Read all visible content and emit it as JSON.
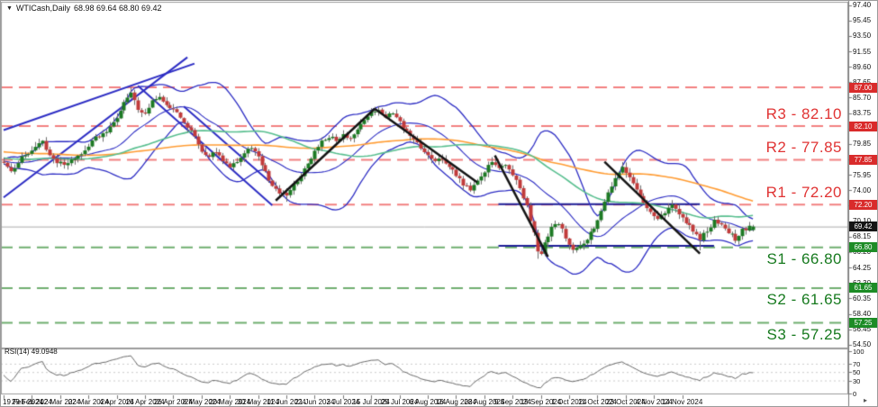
{
  "window": {
    "symbol_title": "WTICash,Daily",
    "ohlc_title": "68.98 69.64 68.80 69.42",
    "dropdown_glyph": "▼",
    "scroll_end_glyph": "▸"
  },
  "chart_data": {
    "type": "candlestick",
    "symbol": "WTICash",
    "timeframe": "Daily",
    "last_ohlc": {
      "open": 68.98,
      "high": 69.64,
      "low": 68.8,
      "close": 69.42
    },
    "y_axis": {
      "top_tick_value": 97.4,
      "tick_step": 1.95,
      "ticks": [
        "97.40",
        "95.45",
        "93.50",
        "91.55",
        "89.60",
        "87.65",
        "85.70",
        "83.75",
        "81.80",
        "79.85",
        "77.90",
        "75.95",
        "74.00",
        "72.05",
        "70.10",
        "68.15",
        "66.20",
        "64.25",
        "62.30",
        "60.35",
        "58.40",
        "56.45",
        "54.50"
      ]
    },
    "x_axis": {
      "labels": [
        "19 Feb 2024",
        "29 Feb 2024",
        "12 Mar 2024",
        "22 Mar 2024",
        "4 Apr 2024",
        "16 Apr 2024",
        "26 Apr 2024",
        "8 May 2024",
        "20 May 2024",
        "30 May 2024",
        "11 Jun 2024",
        "21 Jun 2024",
        "3 Jul 2024",
        "15 Jul 2024",
        "25 Jul 2024",
        "6 Aug 2024",
        "16 Aug 2024",
        "28 Aug 2024",
        "9 Sep 2024",
        "19 Sep 2024",
        "1 Oct 2024",
        "11 Oct 2024",
        "23 Oct 2024",
        "4 Nov 2024",
        "14 Nov 2024"
      ],
      "bars_per_label": 8
    },
    "levels": {
      "resistance": [
        {
          "label": "R3 - 82.10",
          "value": 82.1
        },
        {
          "label": "R2 - 77.85",
          "value": 77.85
        },
        {
          "label": "R1 - 72.20",
          "value": 72.2
        }
      ],
      "support": [
        {
          "label": "S1 - 66.80",
          "value": 66.8
        },
        {
          "label": "S2 - 61.65",
          "value": 61.65
        },
        {
          "label": "S3 - 57.25",
          "value": 57.25
        }
      ],
      "upper_resistance_line": 87.0,
      "current_price": 69.42
    },
    "badges": [
      {
        "text": "87.00",
        "value": 87.0,
        "kind": "r"
      },
      {
        "text": "82.10",
        "value": 82.1,
        "kind": "r"
      },
      {
        "text": "77.85",
        "value": 77.85,
        "kind": "r"
      },
      {
        "text": "72.20",
        "value": 72.2,
        "kind": "r"
      },
      {
        "text": "69.42",
        "value": 69.42,
        "kind": "cur"
      },
      {
        "text": "66.80",
        "value": 66.8,
        "kind": "s"
      },
      {
        "text": "61.65",
        "value": 61.65,
        "kind": "s"
      },
      {
        "text": "57.25",
        "value": 57.25,
        "kind": "s"
      }
    ],
    "close_path": [
      [
        -100,
        80.5
      ],
      [
        -50,
        78.8
      ],
      [
        0,
        77.4
      ],
      [
        2,
        76.3
      ],
      [
        5,
        78.3
      ],
      [
        8,
        79.0
      ],
      [
        11,
        80.1
      ],
      [
        14,
        77.8
      ],
      [
        17,
        77.2
      ],
      [
        20,
        78.0
      ],
      [
        23,
        79.0
      ],
      [
        26,
        80.7
      ],
      [
        29,
        81.4
      ],
      [
        32,
        83.0
      ],
      [
        34,
        85.2
      ],
      [
        36,
        86.4
      ],
      [
        38,
        84.2
      ],
      [
        40,
        83.5
      ],
      [
        42,
        85.3
      ],
      [
        44,
        85.8
      ],
      [
        46,
        84.9
      ],
      [
        48,
        84.2
      ],
      [
        50,
        83.3
      ],
      [
        52,
        82.1
      ],
      [
        54,
        80.8
      ],
      [
        56,
        79.0
      ],
      [
        58,
        78.3
      ],
      [
        60,
        78.9
      ],
      [
        62,
        77.8
      ],
      [
        64,
        76.8
      ],
      [
        66,
        77.6
      ],
      [
        68,
        78.6
      ],
      [
        70,
        79.5
      ],
      [
        72,
        78.1
      ],
      [
        74,
        76.3
      ],
      [
        76,
        74.6
      ],
      [
        78,
        73.8
      ],
      [
        80,
        73.4
      ],
      [
        82,
        74.6
      ],
      [
        84,
        75.8
      ],
      [
        86,
        77.4
      ],
      [
        88,
        78.9
      ],
      [
        90,
        80.2
      ],
      [
        92,
        80.8
      ],
      [
        94,
        80.3
      ],
      [
        96,
        81.1
      ],
      [
        98,
        80.6
      ],
      [
        100,
        81.9
      ],
      [
        102,
        82.8
      ],
      [
        104,
        83.7
      ],
      [
        106,
        84.1
      ],
      [
        108,
        83.2
      ],
      [
        110,
        83.8
      ],
      [
        112,
        82.6
      ],
      [
        114,
        81.4
      ],
      [
        116,
        80.3
      ],
      [
        118,
        79.4
      ],
      [
        120,
        78.3
      ],
      [
        122,
        77.5
      ],
      [
        124,
        78.1
      ],
      [
        126,
        77.0
      ],
      [
        128,
        75.9
      ],
      [
        130,
        74.8
      ],
      [
        132,
        74.2
      ],
      [
        134,
        75.1
      ],
      [
        136,
        76.3
      ],
      [
        138,
        77.7
      ],
      [
        140,
        77.0
      ],
      [
        142,
        77.2
      ],
      [
        144,
        76.0
      ],
      [
        146,
        74.3
      ],
      [
        148,
        71.9
      ],
      [
        150,
        68.5
      ],
      [
        151,
        66.3
      ],
      [
        152,
        66.0
      ],
      [
        153,
        67.4
      ],
      [
        155,
        69.3
      ],
      [
        157,
        69.9
      ],
      [
        159,
        68.0
      ],
      [
        161,
        66.6
      ],
      [
        163,
        66.9
      ],
      [
        165,
        67.8
      ],
      [
        167,
        69.3
      ],
      [
        169,
        71.2
      ],
      [
        171,
        73.6
      ],
      [
        173,
        75.4
      ],
      [
        175,
        76.9
      ],
      [
        177,
        75.8
      ],
      [
        179,
        73.9
      ],
      [
        181,
        72.5
      ],
      [
        183,
        71.2
      ],
      [
        185,
        70.5
      ],
      [
        187,
        71.3
      ],
      [
        189,
        72.0
      ],
      [
        191,
        71.1
      ],
      [
        193,
        70.0
      ],
      [
        195,
        69.0
      ],
      [
        197,
        67.9
      ],
      [
        199,
        68.9
      ],
      [
        201,
        70.1
      ],
      [
        203,
        69.6
      ],
      [
        205,
        68.8
      ],
      [
        207,
        67.8
      ],
      [
        209,
        69.0
      ],
      [
        211,
        69.3
      ],
      [
        212,
        69.42
      ]
    ],
    "spikes": [
      {
        "d": 36,
        "hi": 87.0
      },
      {
        "d": 44,
        "hi": 86.3
      },
      {
        "d": 80,
        "lo": 72.55
      },
      {
        "d": 105,
        "hi": 84.55
      },
      {
        "d": 151,
        "lo": 65.35
      },
      {
        "d": 175,
        "hi": 77.55
      },
      {
        "d": 197,
        "lo": 66.4
      },
      {
        "d": 207,
        "lo": 67.3
      }
    ],
    "horizontal_lines": [
      {
        "price": 72.25,
        "d1": 140,
        "d2": 197
      },
      {
        "price": 67.0,
        "d1": 140,
        "d2": 201
      }
    ],
    "trendlines": [
      {
        "color": "blue",
        "pts": [
          [
            0,
            73.1
          ],
          [
            52,
            90.8
          ]
        ]
      },
      {
        "color": "blue",
        "pts": [
          [
            0,
            81.6
          ],
          [
            54,
            90.0
          ]
        ]
      },
      {
        "color": "blue",
        "pts": [
          [
            38,
            87.2
          ],
          [
            76,
            72.1
          ]
        ]
      },
      {
        "color": "blue",
        "pts": [
          [
            51,
            84.6
          ],
          [
            76,
            74.8
          ]
        ]
      },
      {
        "color": "black",
        "pts": [
          [
            77,
            72.7
          ],
          [
            105,
            84.3
          ]
        ]
      },
      {
        "color": "black",
        "pts": [
          [
            105,
            84.3
          ],
          [
            134,
            75.0
          ]
        ]
      },
      {
        "color": "black",
        "pts": [
          [
            139,
            78.4
          ],
          [
            154,
            65.6
          ]
        ]
      },
      {
        "color": "black",
        "pts": [
          [
            170,
            77.6
          ],
          [
            197,
            66.0
          ]
        ]
      }
    ],
    "indicators": {
      "bollinger": {
        "period": 20,
        "deviation": 2
      },
      "ma_fast": {
        "period": 50
      },
      "ma_slow": {
        "period": 100
      }
    },
    "rsi": {
      "label": "RSI(14)",
      "value_text": "49.0948",
      "period": 14,
      "levels": [
        70,
        50,
        30
      ],
      "scale_labels": [
        {
          "text": "100",
          "v": 100
        },
        {
          "text": "70",
          "v": 70
        },
        {
          "text": "50",
          "v": 50
        },
        {
          "text": "30",
          "v": 30
        },
        {
          "text": "0",
          "v": 0
        }
      ]
    }
  },
  "colors": {
    "background": "#ffffff",
    "panel_border": "#9b9b9b",
    "bull": "#1d7a24",
    "bear": "#c13b3b",
    "wick": "#6e6e6e",
    "bollinger": "#2d2dc4",
    "ma_green": "#58bf8f",
    "ma_orange": "#ff9c33",
    "resistance_dash": "#f28080",
    "support_dash": "#6fae6f",
    "navy_line": "#1c1c96",
    "black_line": "#141414",
    "current_price_line": "#ababab",
    "rsi_line": "#6b6b6b",
    "rsi_dotted": "#cccccc",
    "axis_text": "#111111"
  }
}
